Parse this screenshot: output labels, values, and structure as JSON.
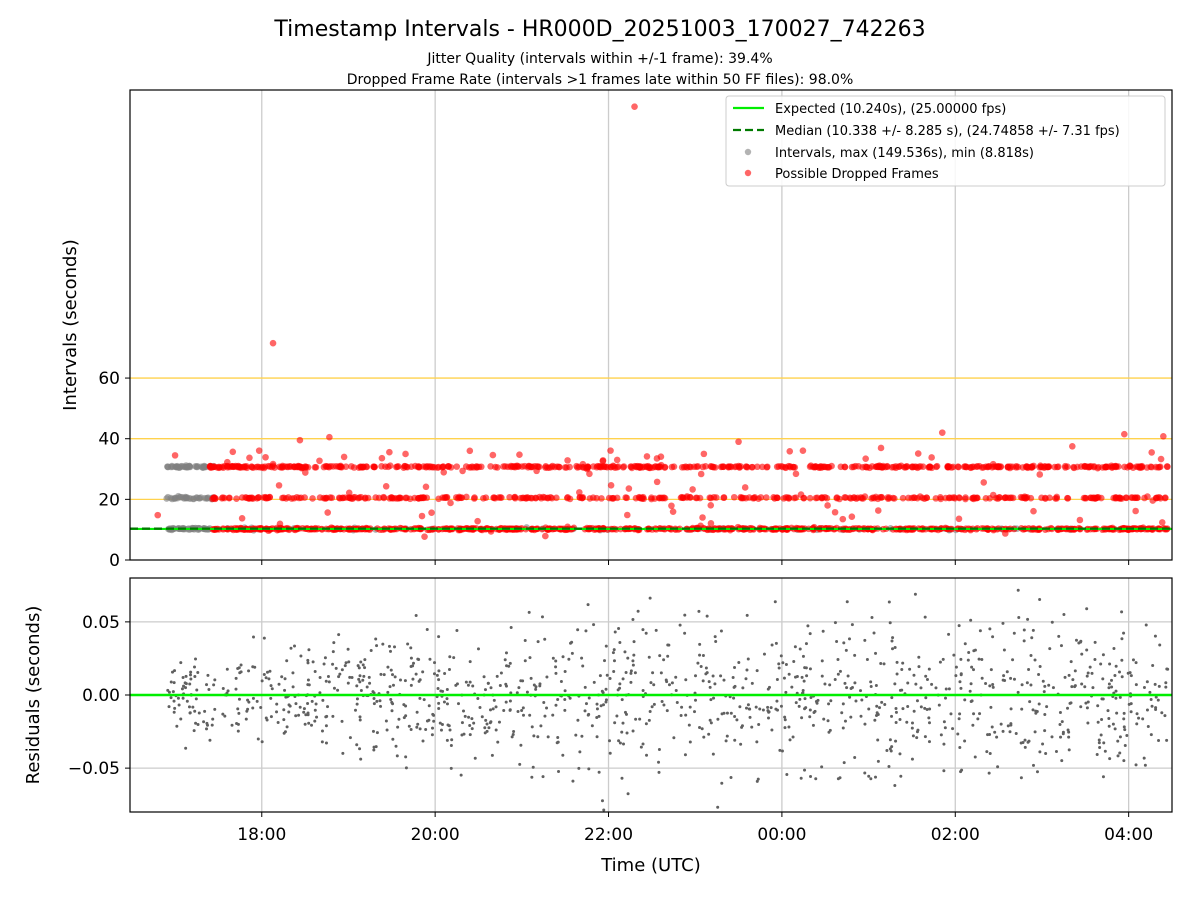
{
  "chart_data": [
    {
      "type": "scatter",
      "title": "Timestamp Intervals - HR000D_20251003_170027_742263",
      "subtitle_1": "Jitter Quality (intervals within +/-1 frame): 39.4%",
      "subtitle_2": "Dropped Frame Rate (intervals >1 frames late within 50 FF files): 98.0%",
      "xlabel": "",
      "ylabel": "Intervals (seconds)",
      "x_unit": "hours since 17:00 UTC",
      "xlim": [
        -0.52,
        11.5
      ],
      "ylim": [
        0,
        155
      ],
      "ytick_values": [
        0,
        20,
        40,
        60
      ],
      "ytick_labels": [
        "0",
        "20",
        "40",
        "60"
      ],
      "reference_lines_y": [
        20,
        40,
        60
      ],
      "reference_line_color": "#ffd24d",
      "legend_position": "top-right",
      "legend": [
        "Expected (10.240s), (25.00000 fps)",
        "Median (10.338 +/- 8.285 s), (24.74858 +/- 7.31 fps)",
        "Intervals, max (149.536s), min (8.818s)",
        "Possible Dropped Frames"
      ],
      "series": [
        {
          "name": "Expected",
          "kind": "hline",
          "y": 10.24,
          "color": "#00ee00"
        },
        {
          "name": "Median",
          "kind": "hline-dashed",
          "y": 10.338,
          "color": "#007a00"
        },
        {
          "name": "Intervals",
          "kind": "points",
          "color": "#808080",
          "bands": [
            10.24,
            20.48,
            30.72
          ],
          "x_range": [
            -0.1,
            11.45
          ]
        },
        {
          "name": "Possible Dropped Frames",
          "kind": "points",
          "color": "#ff0000",
          "bands": [
            10.24,
            20.48,
            30.72
          ],
          "x_range": [
            0.4,
            11.45
          ],
          "outliers": [
            [
              -0.2,
              14.8
            ],
            [
              1.13,
              71.5
            ],
            [
              1.44,
              39.5
            ],
            [
              1.78,
              40.5
            ],
            [
              3.4,
              36
            ],
            [
              5.3,
              149.5
            ],
            [
              5.1,
              33
            ],
            [
              6.1,
              35
            ],
            [
              6.5,
              39
            ],
            [
              8.85,
              42
            ],
            [
              10.95,
              41.5
            ],
            [
              11.4,
              40.8
            ],
            [
              10.35,
              37.5
            ],
            [
              0.0,
              34.5
            ],
            [
              1.95,
              34.0
            ]
          ]
        }
      ]
    },
    {
      "type": "scatter",
      "title": "",
      "xlabel": "Time (UTC)",
      "ylabel": "Residuals (seconds)",
      "x_unit": "hours since 17:00 UTC",
      "xlim": [
        -0.52,
        11.5
      ],
      "ylim": [
        -0.08,
        0.08
      ],
      "xtick_values": [
        1,
        3,
        5,
        7,
        9,
        11
      ],
      "xtick_labels": [
        "18:00",
        "20:00",
        "22:00",
        "00:00",
        "02:00",
        "04:00"
      ],
      "ytick_values": [
        0.05,
        0.0,
        -0.05
      ],
      "ytick_labels": [
        "0.05",
        "0.00",
        "−0.05"
      ],
      "zero_line_color": "#00ee00",
      "series": [
        {
          "name": "Residuals",
          "kind": "points",
          "color": "#606060",
          "x_range": [
            -0.1,
            11.45
          ],
          "spread_start": 0.018,
          "spread_end": 0.04,
          "count": 1200
        }
      ]
    }
  ]
}
